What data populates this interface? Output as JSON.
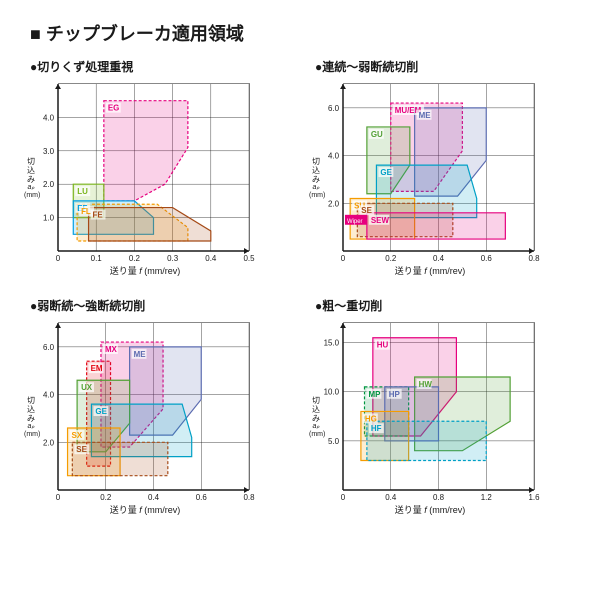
{
  "main_title": "■ チップブレーカ適用領域",
  "xlabel": "送り量 f  (mm/rev)",
  "ylabel_lines": [
    "切",
    "込",
    "み"
  ],
  "ylabel_sub": "aₚ",
  "ylabel_unit": "(mm)",
  "panels": [
    {
      "title": "●切りくず処理重視",
      "xlim": [
        0,
        0.5
      ],
      "xtick_step": 0.1,
      "ylim": [
        0,
        5.0
      ],
      "yticks": [
        1.0,
        2.0,
        3.0,
        4.0
      ],
      "regions": [
        {
          "label": "EG",
          "color": "#e6007e",
          "dashed": true,
          "points": [
            [
              0.12,
              4.5
            ],
            [
              0.34,
              4.5
            ],
            [
              0.34,
              3.1
            ],
            [
              0.28,
              2.0
            ],
            [
              0.2,
              1.5
            ],
            [
              0.12,
              1.5
            ]
          ]
        },
        {
          "label": "LU",
          "color": "#7ab51d",
          "dashed": false,
          "points": [
            [
              0.04,
              2.0
            ],
            [
              0.12,
              2.0
            ],
            [
              0.12,
              1.0
            ],
            [
              0.04,
              1.0
            ]
          ]
        },
        {
          "label": "EF",
          "color": "#009fe3",
          "dashed": false,
          "points": [
            [
              0.04,
              1.5
            ],
            [
              0.2,
              1.5
            ],
            [
              0.25,
              1.0
            ],
            [
              0.25,
              0.5
            ],
            [
              0.04,
              0.5
            ]
          ]
        },
        {
          "label": "FL",
          "color": "#f59c00",
          "dashed": true,
          "points": [
            [
              0.05,
              1.4
            ],
            [
              0.26,
              1.4
            ],
            [
              0.34,
              0.7
            ],
            [
              0.34,
              0.3
            ],
            [
              0.05,
              0.3
            ]
          ]
        },
        {
          "label": "FE",
          "color": "#a54a17",
          "dashed": false,
          "points": [
            [
              0.08,
              1.3
            ],
            [
              0.3,
              1.3
            ],
            [
              0.4,
              0.6
            ],
            [
              0.4,
              0.3
            ],
            [
              0.08,
              0.3
            ]
          ]
        }
      ]
    },
    {
      "title": "●連続～弱断続切削",
      "xlim": [
        0,
        0.8
      ],
      "xtick_step": 0.2,
      "ylim": [
        0,
        7.0
      ],
      "yticks": [
        2.0,
        4.0,
        6.0
      ],
      "regions": [
        {
          "label": "MU/EM",
          "color": "#e6007e",
          "dashed": true,
          "points": [
            [
              0.2,
              6.2
            ],
            [
              0.5,
              6.2
            ],
            [
              0.5,
              4.2
            ],
            [
              0.38,
              2.5
            ],
            [
              0.2,
              2.5
            ]
          ]
        },
        {
          "label": "ME",
          "color": "#5b6bb0",
          "dashed": false,
          "points": [
            [
              0.3,
              6.0
            ],
            [
              0.6,
              6.0
            ],
            [
              0.6,
              3.8
            ],
            [
              0.48,
              2.3
            ],
            [
              0.3,
              2.3
            ]
          ]
        },
        {
          "label": "GU",
          "color": "#52a035",
          "dashed": false,
          "points": [
            [
              0.1,
              5.2
            ],
            [
              0.28,
              5.2
            ],
            [
              0.28,
              3.6
            ],
            [
              0.2,
              2.4
            ],
            [
              0.1,
              2.4
            ]
          ]
        },
        {
          "label": "GE",
          "color": "#00a0c6",
          "dashed": false,
          "points": [
            [
              0.14,
              3.6
            ],
            [
              0.52,
              3.6
            ],
            [
              0.56,
              2.2
            ],
            [
              0.56,
              1.4
            ],
            [
              0.14,
              1.4
            ]
          ]
        },
        {
          "label": "SU",
          "color": "#f59c00",
          "dashed": false,
          "points": [
            [
              0.03,
              2.2
            ],
            [
              0.3,
              2.2
            ],
            [
              0.3,
              0.5
            ],
            [
              0.03,
              0.5
            ]
          ]
        },
        {
          "label": "SE",
          "color": "#a54a17",
          "dashed": true,
          "points": [
            [
              0.06,
              2.0
            ],
            [
              0.46,
              2.0
            ],
            [
              0.46,
              0.6
            ],
            [
              0.06,
              0.6
            ]
          ]
        },
        {
          "label": "SEW",
          "color": "#e6007e",
          "dashed": false,
          "wiper": true,
          "points": [
            [
              0.1,
              1.6
            ],
            [
              0.68,
              1.6
            ],
            [
              0.68,
              0.5
            ],
            [
              0.1,
              0.5
            ]
          ]
        }
      ]
    },
    {
      "title": "●弱断続～強断続切削",
      "xlim": [
        0,
        0.8
      ],
      "xtick_step": 0.2,
      "ylim": [
        0,
        7.0
      ],
      "yticks": [
        2.0,
        4.0,
        6.0
      ],
      "regions": [
        {
          "label": "EM",
          "color": "#e20613",
          "dashed": true,
          "points": [
            [
              0.12,
              5.4
            ],
            [
              0.22,
              5.4
            ],
            [
              0.22,
              1.0
            ],
            [
              0.12,
              1.0
            ]
          ]
        },
        {
          "label": "MX",
          "color": "#e6007e",
          "dashed": true,
          "points": [
            [
              0.18,
              6.2
            ],
            [
              0.44,
              6.2
            ],
            [
              0.44,
              3.4
            ],
            [
              0.3,
              1.8
            ],
            [
              0.18,
              1.8
            ]
          ]
        },
        {
          "label": "ME",
          "color": "#5b6bb0",
          "dashed": false,
          "points": [
            [
              0.3,
              6.0
            ],
            [
              0.6,
              6.0
            ],
            [
              0.6,
              3.8
            ],
            [
              0.48,
              2.3
            ],
            [
              0.3,
              2.3
            ]
          ]
        },
        {
          "label": "UX",
          "color": "#52a035",
          "dashed": false,
          "points": [
            [
              0.08,
              4.6
            ],
            [
              0.3,
              4.6
            ],
            [
              0.3,
              2.8
            ],
            [
              0.2,
              1.6
            ],
            [
              0.08,
              1.6
            ]
          ]
        },
        {
          "label": "GE",
          "color": "#00a0c6",
          "dashed": false,
          "points": [
            [
              0.14,
              3.6
            ],
            [
              0.52,
              3.6
            ],
            [
              0.56,
              2.2
            ],
            [
              0.56,
              1.4
            ],
            [
              0.14,
              1.4
            ]
          ]
        },
        {
          "label": "SX",
          "color": "#f59c00",
          "dashed": false,
          "points": [
            [
              0.04,
              2.6
            ],
            [
              0.26,
              2.6
            ],
            [
              0.26,
              0.6
            ],
            [
              0.04,
              0.6
            ]
          ]
        },
        {
          "label": "SE",
          "color": "#a54a17",
          "dashed": true,
          "points": [
            [
              0.06,
              2.0
            ],
            [
              0.46,
              2.0
            ],
            [
              0.46,
              0.6
            ],
            [
              0.06,
              0.6
            ]
          ]
        }
      ]
    },
    {
      "title": "●粗～重切削",
      "xlim": [
        0,
        1.6
      ],
      "xtick_step": 0.4,
      "ylim": [
        0,
        17.0
      ],
      "yticks": [
        5.0,
        10.0,
        15.0
      ],
      "regions": [
        {
          "label": "HU",
          "color": "#e6007e",
          "dashed": false,
          "points": [
            [
              0.25,
              15.5
            ],
            [
              0.95,
              15.5
            ],
            [
              0.95,
              10.0
            ],
            [
              0.65,
              5.5
            ],
            [
              0.25,
              5.5
            ]
          ]
        },
        {
          "label": "HW",
          "color": "#52a035",
          "dashed": false,
          "points": [
            [
              0.6,
              11.5
            ],
            [
              1.4,
              11.5
            ],
            [
              1.4,
              7.0
            ],
            [
              1.0,
              4.0
            ],
            [
              0.6,
              4.0
            ]
          ]
        },
        {
          "label": "MP",
          "color": "#009640",
          "dashed": true,
          "points": [
            [
              0.18,
              10.5
            ],
            [
              0.55,
              10.5
            ],
            [
              0.55,
              5.5
            ],
            [
              0.18,
              5.5
            ]
          ]
        },
        {
          "label": "HP",
          "color": "#5b6bb0",
          "dashed": false,
          "points": [
            [
              0.35,
              10.5
            ],
            [
              0.8,
              10.5
            ],
            [
              0.8,
              5.0
            ],
            [
              0.35,
              5.0
            ]
          ]
        },
        {
          "label": "HG",
          "color": "#f59c00",
          "dashed": false,
          "points": [
            [
              0.15,
              8.0
            ],
            [
              0.55,
              8.0
            ],
            [
              0.55,
              3.0
            ],
            [
              0.15,
              3.0
            ]
          ]
        },
        {
          "label": "HF",
          "color": "#00a0c6",
          "dashed": true,
          "points": [
            [
              0.2,
              7.0
            ],
            [
              1.2,
              7.0
            ],
            [
              1.2,
              3.0
            ],
            [
              0.2,
              3.0
            ]
          ]
        }
      ]
    }
  ]
}
